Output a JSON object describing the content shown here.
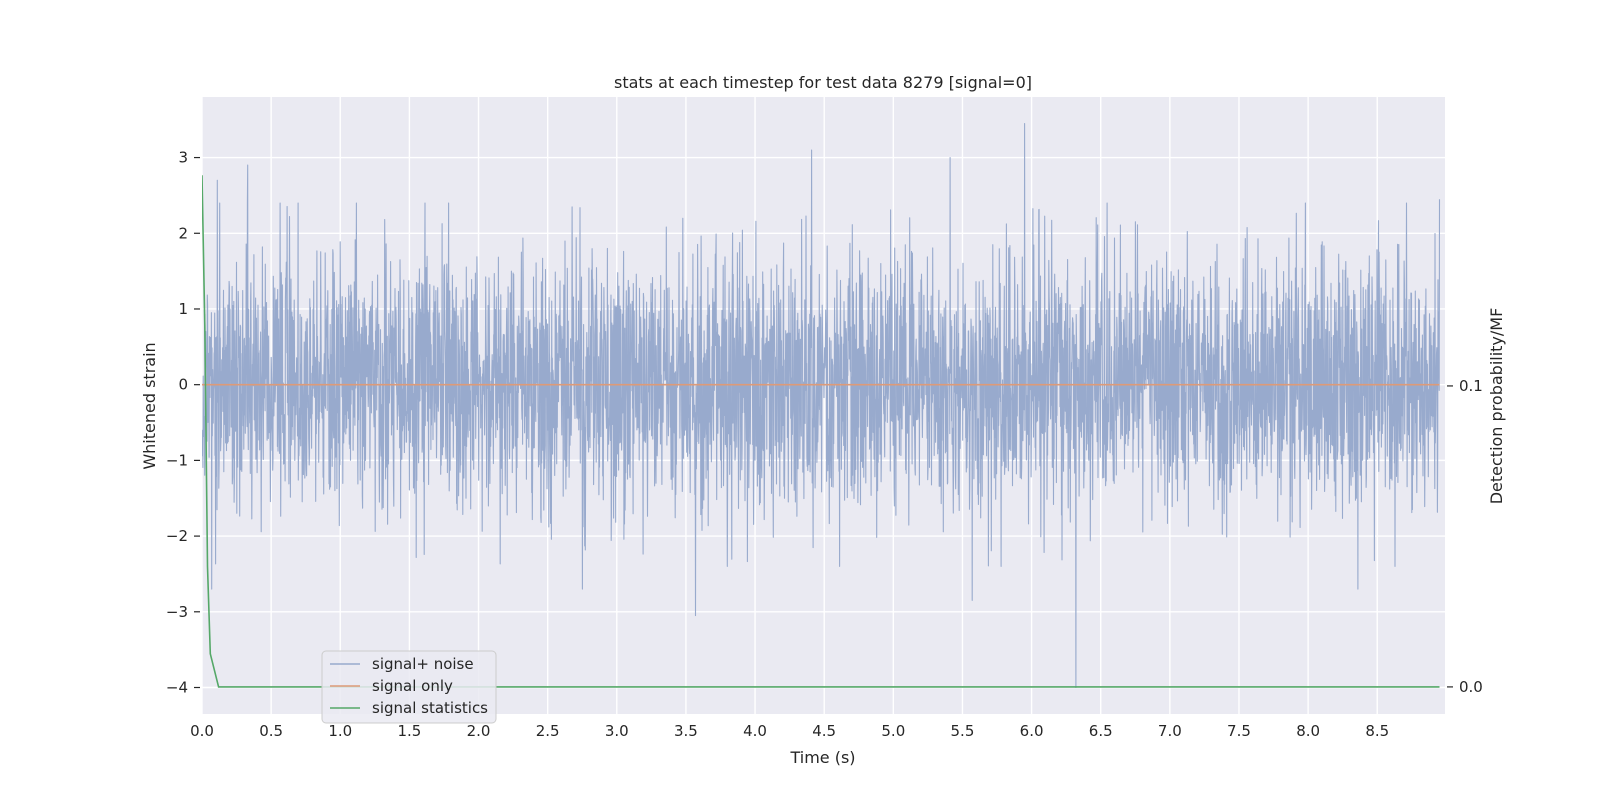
{
  "chart_data": {
    "type": "line",
    "title": "stats at each timestep for test data 8279 [signal=0]",
    "xlabel": "Time (s)",
    "ylabel": "Whitened strain",
    "y2label": "Detection probability/MF",
    "xlim": [
      0,
      8.99
    ],
    "ylim": [
      -4.35,
      3.8
    ],
    "y2lim": [
      -0.009,
      0.196
    ],
    "xticks": [
      0.0,
      0.5,
      1.0,
      1.5,
      2.0,
      2.5,
      3.0,
      3.5,
      4.0,
      4.5,
      5.0,
      5.5,
      6.0,
      6.5,
      7.0,
      7.5,
      8.0,
      8.5
    ],
    "xtick_labels": [
      "0.0",
      "0.5",
      "1.0",
      "1.5",
      "2.0",
      "2.5",
      "3.0",
      "3.5",
      "4.0",
      "4.5",
      "5.0",
      "5.5",
      "6.0",
      "6.5",
      "7.0",
      "7.5",
      "8.0",
      "8.5"
    ],
    "yticks": [
      3,
      2,
      1,
      0,
      -1,
      -2,
      -3,
      -4
    ],
    "ytick_labels": [
      "3",
      "2",
      "1",
      "0",
      "−1",
      "−2",
      "−3",
      "−4"
    ],
    "y2ticks": [
      0.1,
      0.0
    ],
    "y2tick_labels": [
      "0.1",
      "0.0"
    ],
    "grid": true,
    "legend_position": "lower-left",
    "colors": {
      "noise": "#98aacd",
      "signal": "#dd9a78",
      "statistics": "#55a868",
      "plot_bg": "#eaeaf2",
      "grid": "#ffffff"
    },
    "series": [
      {
        "name": "signal+ noise",
        "description_kind": "noise",
        "amplitude_std": 0.85,
        "peaks": [
          {
            "x": 0.33,
            "y": 2.9
          },
          {
            "x": 0.11,
            "y": 2.7
          },
          {
            "x": 4.41,
            "y": 3.1
          },
          {
            "x": 5.41,
            "y": 3.0
          },
          {
            "x": 5.95,
            "y": 3.45
          },
          {
            "x": 3.57,
            "y": -3.05
          },
          {
            "x": 6.32,
            "y": -4.0
          },
          {
            "x": 0.07,
            "y": -2.7
          },
          {
            "x": 2.75,
            "y": -2.7
          },
          {
            "x": 5.57,
            "y": -2.85
          },
          {
            "x": 8.95,
            "y": 2.45
          },
          {
            "x": 8.36,
            "y": -2.7
          }
        ]
      },
      {
        "name": "signal only",
        "description_kind": "constant",
        "value": 0.0
      },
      {
        "name": "signal statistics",
        "description_kind": "statistic",
        "axis": "right",
        "x": [
          0.0,
          0.02,
          0.04,
          0.06,
          0.12,
          8.95
        ],
        "y": [
          0.17,
          0.12,
          0.04,
          0.011,
          0.0,
          0.0
        ]
      }
    ]
  }
}
